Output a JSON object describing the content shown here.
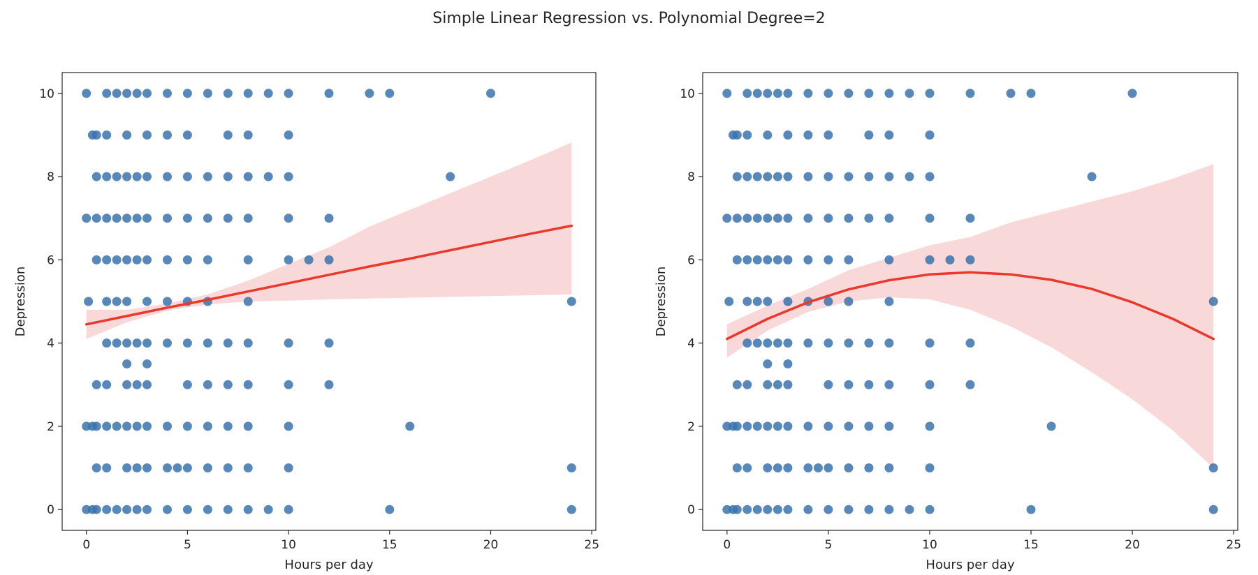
{
  "figure": {
    "title": "Simple Linear Regression vs. Polynomial Degree=2"
  },
  "colors": {
    "points": "#3a73ad",
    "fit_line": "#e8392b",
    "ci_band": "#f4b8ba"
  },
  "chart_data": [
    {
      "type": "scatter",
      "title": "",
      "xlabel": "Hours per day",
      "ylabel": "Depression",
      "xlim": [
        -1.2,
        25.2
      ],
      "ylim": [
        -0.5,
        10.5
      ],
      "xticks": [
        0,
        5,
        10,
        15,
        20,
        25
      ],
      "yticks": [
        0,
        2,
        4,
        6,
        8,
        10
      ],
      "grid": false,
      "legend": "none",
      "points": [
        [
          0,
          10
        ],
        [
          1,
          10
        ],
        [
          1.5,
          10
        ],
        [
          2,
          10
        ],
        [
          2.5,
          10
        ],
        [
          3,
          10
        ],
        [
          4,
          10
        ],
        [
          5,
          10
        ],
        [
          6,
          10
        ],
        [
          7,
          10
        ],
        [
          8,
          10
        ],
        [
          9,
          10
        ],
        [
          10,
          10
        ],
        [
          12,
          10
        ],
        [
          14,
          10
        ],
        [
          15,
          10
        ],
        [
          20,
          10
        ],
        [
          0.3,
          9
        ],
        [
          0.5,
          9
        ],
        [
          1,
          9
        ],
        [
          2,
          9
        ],
        [
          3,
          9
        ],
        [
          4,
          9
        ],
        [
          5,
          9
        ],
        [
          7,
          9
        ],
        [
          8,
          9
        ],
        [
          10,
          9
        ],
        [
          0.5,
          8
        ],
        [
          1,
          8
        ],
        [
          1.5,
          8
        ],
        [
          2,
          8
        ],
        [
          2.5,
          8
        ],
        [
          3,
          8
        ],
        [
          4,
          8
        ],
        [
          5,
          8
        ],
        [
          6,
          8
        ],
        [
          7,
          8
        ],
        [
          8,
          8
        ],
        [
          9,
          8
        ],
        [
          10,
          8
        ],
        [
          18,
          8
        ],
        [
          0,
          7
        ],
        [
          0.5,
          7
        ],
        [
          1,
          7
        ],
        [
          1.5,
          7
        ],
        [
          2,
          7
        ],
        [
          2.5,
          7
        ],
        [
          3,
          7
        ],
        [
          4,
          7
        ],
        [
          5,
          7
        ],
        [
          6,
          7
        ],
        [
          7,
          7
        ],
        [
          8,
          7
        ],
        [
          10,
          7
        ],
        [
          12,
          7
        ],
        [
          0.5,
          6
        ],
        [
          1,
          6
        ],
        [
          1.5,
          6
        ],
        [
          2,
          6
        ],
        [
          2.5,
          6
        ],
        [
          3,
          6
        ],
        [
          4,
          6
        ],
        [
          5,
          6
        ],
        [
          6,
          6
        ],
        [
          8,
          6
        ],
        [
          10,
          6
        ],
        [
          11,
          6
        ],
        [
          12,
          6
        ],
        [
          0.1,
          5
        ],
        [
          1,
          5
        ],
        [
          1.5,
          5
        ],
        [
          2,
          5
        ],
        [
          3,
          5
        ],
        [
          4,
          5
        ],
        [
          5,
          5
        ],
        [
          6,
          5
        ],
        [
          8,
          5
        ],
        [
          24,
          5
        ],
        [
          1,
          4
        ],
        [
          1.5,
          4
        ],
        [
          2,
          4
        ],
        [
          2.5,
          4
        ],
        [
          3,
          4
        ],
        [
          4,
          4
        ],
        [
          5,
          4
        ],
        [
          6,
          4
        ],
        [
          7,
          4
        ],
        [
          8,
          4
        ],
        [
          10,
          4
        ],
        [
          12,
          4
        ],
        [
          2,
          3.5
        ],
        [
          3,
          3.5
        ],
        [
          0.5,
          3
        ],
        [
          1,
          3
        ],
        [
          2,
          3
        ],
        [
          2.5,
          3
        ],
        [
          3,
          3
        ],
        [
          5,
          3
        ],
        [
          6,
          3
        ],
        [
          7,
          3
        ],
        [
          8,
          3
        ],
        [
          10,
          3
        ],
        [
          12,
          3
        ],
        [
          0,
          2
        ],
        [
          0.3,
          2
        ],
        [
          0.5,
          2
        ],
        [
          1,
          2
        ],
        [
          1.5,
          2
        ],
        [
          2,
          2
        ],
        [
          2.5,
          2
        ],
        [
          3,
          2
        ],
        [
          4,
          2
        ],
        [
          5,
          2
        ],
        [
          6,
          2
        ],
        [
          7,
          2
        ],
        [
          8,
          2
        ],
        [
          10,
          2
        ],
        [
          16,
          2
        ],
        [
          0.5,
          1
        ],
        [
          1,
          1
        ],
        [
          2,
          1
        ],
        [
          2.5,
          1
        ],
        [
          3,
          1
        ],
        [
          4,
          1
        ],
        [
          4.5,
          1
        ],
        [
          5,
          1
        ],
        [
          6,
          1
        ],
        [
          7,
          1
        ],
        [
          8,
          1
        ],
        [
          10,
          1
        ],
        [
          24,
          1
        ],
        [
          0,
          0
        ],
        [
          0.3,
          0
        ],
        [
          0.5,
          0
        ],
        [
          1,
          0
        ],
        [
          1.5,
          0
        ],
        [
          2,
          0
        ],
        [
          2.5,
          0
        ],
        [
          3,
          0
        ],
        [
          4,
          0
        ],
        [
          5,
          0
        ],
        [
          6,
          0
        ],
        [
          7,
          0
        ],
        [
          8,
          0
        ],
        [
          9,
          0
        ],
        [
          10,
          0
        ],
        [
          15,
          0
        ],
        [
          24,
          0
        ]
      ],
      "fit": {
        "kind": "linear",
        "x": [
          0,
          2,
          4,
          6,
          8,
          10,
          12,
          14,
          16,
          18,
          20,
          22,
          24
        ],
        "y": [
          4.45,
          4.65,
          4.85,
          5.04,
          5.24,
          5.44,
          5.64,
          5.84,
          6.03,
          6.23,
          6.43,
          6.63,
          6.82
        ],
        "ci_low": [
          4.1,
          4.5,
          4.78,
          4.93,
          5.0,
          5.02,
          5.05,
          5.07,
          5.09,
          5.11,
          5.13,
          5.15,
          5.17
        ],
        "ci_high": [
          4.8,
          4.8,
          4.95,
          5.17,
          5.5,
          5.9,
          6.3,
          6.8,
          7.2,
          7.6,
          8.0,
          8.4,
          8.82
        ]
      }
    },
    {
      "type": "scatter",
      "title": "",
      "xlabel": "Hours per day",
      "ylabel": "Depression",
      "xlim": [
        -1.2,
        25.2
      ],
      "ylim": [
        -0.5,
        10.5
      ],
      "xticks": [
        0,
        5,
        10,
        15,
        20,
        25
      ],
      "yticks": [
        0,
        2,
        4,
        6,
        8,
        10
      ],
      "grid": false,
      "legend": "none",
      "points": [
        [
          0,
          10
        ],
        [
          1,
          10
        ],
        [
          1.5,
          10
        ],
        [
          2,
          10
        ],
        [
          2.5,
          10
        ],
        [
          3,
          10
        ],
        [
          4,
          10
        ],
        [
          5,
          10
        ],
        [
          6,
          10
        ],
        [
          7,
          10
        ],
        [
          8,
          10
        ],
        [
          9,
          10
        ],
        [
          10,
          10
        ],
        [
          12,
          10
        ],
        [
          14,
          10
        ],
        [
          15,
          10
        ],
        [
          20,
          10
        ],
        [
          0.3,
          9
        ],
        [
          0.5,
          9
        ],
        [
          1,
          9
        ],
        [
          2,
          9
        ],
        [
          3,
          9
        ],
        [
          4,
          9
        ],
        [
          5,
          9
        ],
        [
          7,
          9
        ],
        [
          8,
          9
        ],
        [
          10,
          9
        ],
        [
          0.5,
          8
        ],
        [
          1,
          8
        ],
        [
          1.5,
          8
        ],
        [
          2,
          8
        ],
        [
          2.5,
          8
        ],
        [
          3,
          8
        ],
        [
          4,
          8
        ],
        [
          5,
          8
        ],
        [
          6,
          8
        ],
        [
          7,
          8
        ],
        [
          8,
          8
        ],
        [
          9,
          8
        ],
        [
          10,
          8
        ],
        [
          18,
          8
        ],
        [
          0,
          7
        ],
        [
          0.5,
          7
        ],
        [
          1,
          7
        ],
        [
          1.5,
          7
        ],
        [
          2,
          7
        ],
        [
          2.5,
          7
        ],
        [
          3,
          7
        ],
        [
          4,
          7
        ],
        [
          5,
          7
        ],
        [
          6,
          7
        ],
        [
          7,
          7
        ],
        [
          8,
          7
        ],
        [
          10,
          7
        ],
        [
          12,
          7
        ],
        [
          0.5,
          6
        ],
        [
          1,
          6
        ],
        [
          1.5,
          6
        ],
        [
          2,
          6
        ],
        [
          2.5,
          6
        ],
        [
          3,
          6
        ],
        [
          4,
          6
        ],
        [
          5,
          6
        ],
        [
          6,
          6
        ],
        [
          8,
          6
        ],
        [
          10,
          6
        ],
        [
          11,
          6
        ],
        [
          12,
          6
        ],
        [
          0.1,
          5
        ],
        [
          1,
          5
        ],
        [
          1.5,
          5
        ],
        [
          2,
          5
        ],
        [
          3,
          5
        ],
        [
          4,
          5
        ],
        [
          5,
          5
        ],
        [
          6,
          5
        ],
        [
          8,
          5
        ],
        [
          24,
          5
        ],
        [
          1,
          4
        ],
        [
          1.5,
          4
        ],
        [
          2,
          4
        ],
        [
          2.5,
          4
        ],
        [
          3,
          4
        ],
        [
          4,
          4
        ],
        [
          5,
          4
        ],
        [
          6,
          4
        ],
        [
          7,
          4
        ],
        [
          8,
          4
        ],
        [
          10,
          4
        ],
        [
          12,
          4
        ],
        [
          2,
          3.5
        ],
        [
          3,
          3.5
        ],
        [
          0.5,
          3
        ],
        [
          1,
          3
        ],
        [
          2,
          3
        ],
        [
          2.5,
          3
        ],
        [
          3,
          3
        ],
        [
          5,
          3
        ],
        [
          6,
          3
        ],
        [
          7,
          3
        ],
        [
          8,
          3
        ],
        [
          10,
          3
        ],
        [
          12,
          3
        ],
        [
          0,
          2
        ],
        [
          0.3,
          2
        ],
        [
          0.5,
          2
        ],
        [
          1,
          2
        ],
        [
          1.5,
          2
        ],
        [
          2,
          2
        ],
        [
          2.5,
          2
        ],
        [
          3,
          2
        ],
        [
          4,
          2
        ],
        [
          5,
          2
        ],
        [
          6,
          2
        ],
        [
          7,
          2
        ],
        [
          8,
          2
        ],
        [
          10,
          2
        ],
        [
          16,
          2
        ],
        [
          0.5,
          1
        ],
        [
          1,
          1
        ],
        [
          2,
          1
        ],
        [
          2.5,
          1
        ],
        [
          3,
          1
        ],
        [
          4,
          1
        ],
        [
          4.5,
          1
        ],
        [
          5,
          1
        ],
        [
          6,
          1
        ],
        [
          7,
          1
        ],
        [
          8,
          1
        ],
        [
          10,
          1
        ],
        [
          24,
          1
        ],
        [
          0,
          0
        ],
        [
          0.3,
          0
        ],
        [
          0.5,
          0
        ],
        [
          1,
          0
        ],
        [
          1.5,
          0
        ],
        [
          2,
          0
        ],
        [
          2.5,
          0
        ],
        [
          3,
          0
        ],
        [
          4,
          0
        ],
        [
          5,
          0
        ],
        [
          6,
          0
        ],
        [
          7,
          0
        ],
        [
          8,
          0
        ],
        [
          9,
          0
        ],
        [
          10,
          0
        ],
        [
          15,
          0
        ],
        [
          24,
          0
        ]
      ],
      "fit": {
        "kind": "polynomial",
        "degree": 2,
        "x": [
          0,
          2,
          4,
          6,
          8,
          10,
          12,
          14,
          16,
          18,
          20,
          22,
          24
        ],
        "y": [
          4.1,
          4.58,
          4.98,
          5.29,
          5.51,
          5.65,
          5.7,
          5.65,
          5.52,
          5.3,
          4.98,
          4.58,
          4.1
        ],
        "ci_low": [
          3.65,
          4.3,
          4.75,
          5.0,
          5.1,
          5.05,
          4.8,
          4.4,
          3.9,
          3.3,
          2.65,
          1.9,
          1.0
        ],
        "ci_high": [
          4.45,
          4.9,
          5.3,
          5.75,
          6.05,
          6.35,
          6.55,
          6.9,
          7.15,
          7.4,
          7.65,
          7.95,
          8.3
        ]
      }
    }
  ]
}
